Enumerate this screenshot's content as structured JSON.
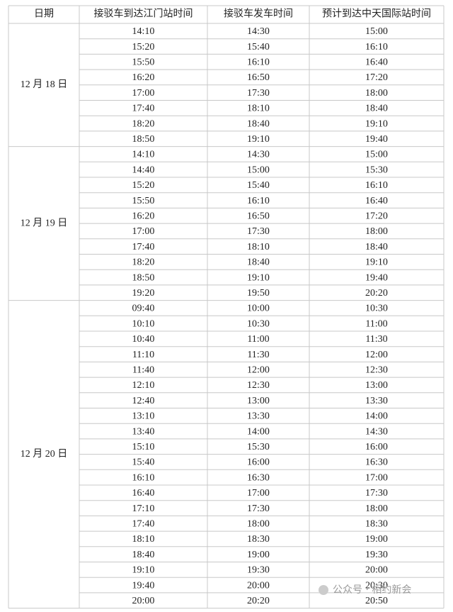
{
  "table": {
    "header": [
      "日期",
      "接驳车到达江门站时间",
      "接驳车发车时间",
      "预计到达中天国际站时间"
    ],
    "groups": [
      {
        "date": "12 月 18 日",
        "rows": [
          [
            "14:10",
            "14:30",
            "15:00"
          ],
          [
            "15:20",
            "15:40",
            "16:10"
          ],
          [
            "15:50",
            "16:10",
            "16:40"
          ],
          [
            "16:20",
            "16:50",
            "17:20"
          ],
          [
            "17:00",
            "17:30",
            "18:00"
          ],
          [
            "17:40",
            "18:10",
            "18:40"
          ],
          [
            "18:20",
            "18:40",
            "19:10"
          ],
          [
            "18:50",
            "19:10",
            "19:40"
          ]
        ]
      },
      {
        "date": "12 月 19 日",
        "rows": [
          [
            "14:10",
            "14:30",
            "15:00"
          ],
          [
            "14:40",
            "15:00",
            "15:30"
          ],
          [
            "15:20",
            "15:40",
            "16:10"
          ],
          [
            "15:50",
            "16:10",
            "16:40"
          ],
          [
            "16:20",
            "16:50",
            "17:20"
          ],
          [
            "17:00",
            "17:30",
            "18:00"
          ],
          [
            "17:40",
            "18:10",
            "18:40"
          ],
          [
            "18:20",
            "18:40",
            "19:10"
          ],
          [
            "18:50",
            "19:10",
            "19:40"
          ],
          [
            "19:20",
            "19:50",
            "20:20"
          ]
        ]
      },
      {
        "date": "12 月 20 日",
        "rows": [
          [
            "09:40",
            "10:00",
            "10:30"
          ],
          [
            "10:10",
            "10:30",
            "11:00"
          ],
          [
            "10:40",
            "11:00",
            "11:30"
          ],
          [
            "11:10",
            "11:30",
            "12:00"
          ],
          [
            "11:40",
            "12:00",
            "12:30"
          ],
          [
            "12:10",
            "12:30",
            "13:00"
          ],
          [
            "12:40",
            "13:00",
            "13:30"
          ],
          [
            "13:10",
            "13:30",
            "14:00"
          ],
          [
            "13:40",
            "14:00",
            "14:30"
          ],
          [
            "15:10",
            "15:30",
            "16:00"
          ],
          [
            "15:40",
            "16:00",
            "16:30"
          ],
          [
            "16:10",
            "16:30",
            "17:00"
          ],
          [
            "16:40",
            "17:00",
            "17:30"
          ],
          [
            "17:10",
            "17:30",
            "18:00"
          ],
          [
            "17:40",
            "18:00",
            "18:30"
          ],
          [
            "18:10",
            "18:30",
            "19:00"
          ],
          [
            "18:40",
            "19:00",
            "19:30"
          ],
          [
            "19:10",
            "19:30",
            "20:00"
          ],
          [
            "19:40",
            "20:00",
            "20:30"
          ],
          [
            "20:00",
            "20:20",
            "20:50"
          ]
        ]
      }
    ]
  },
  "watermark": "公众号 · 相约新会"
}
